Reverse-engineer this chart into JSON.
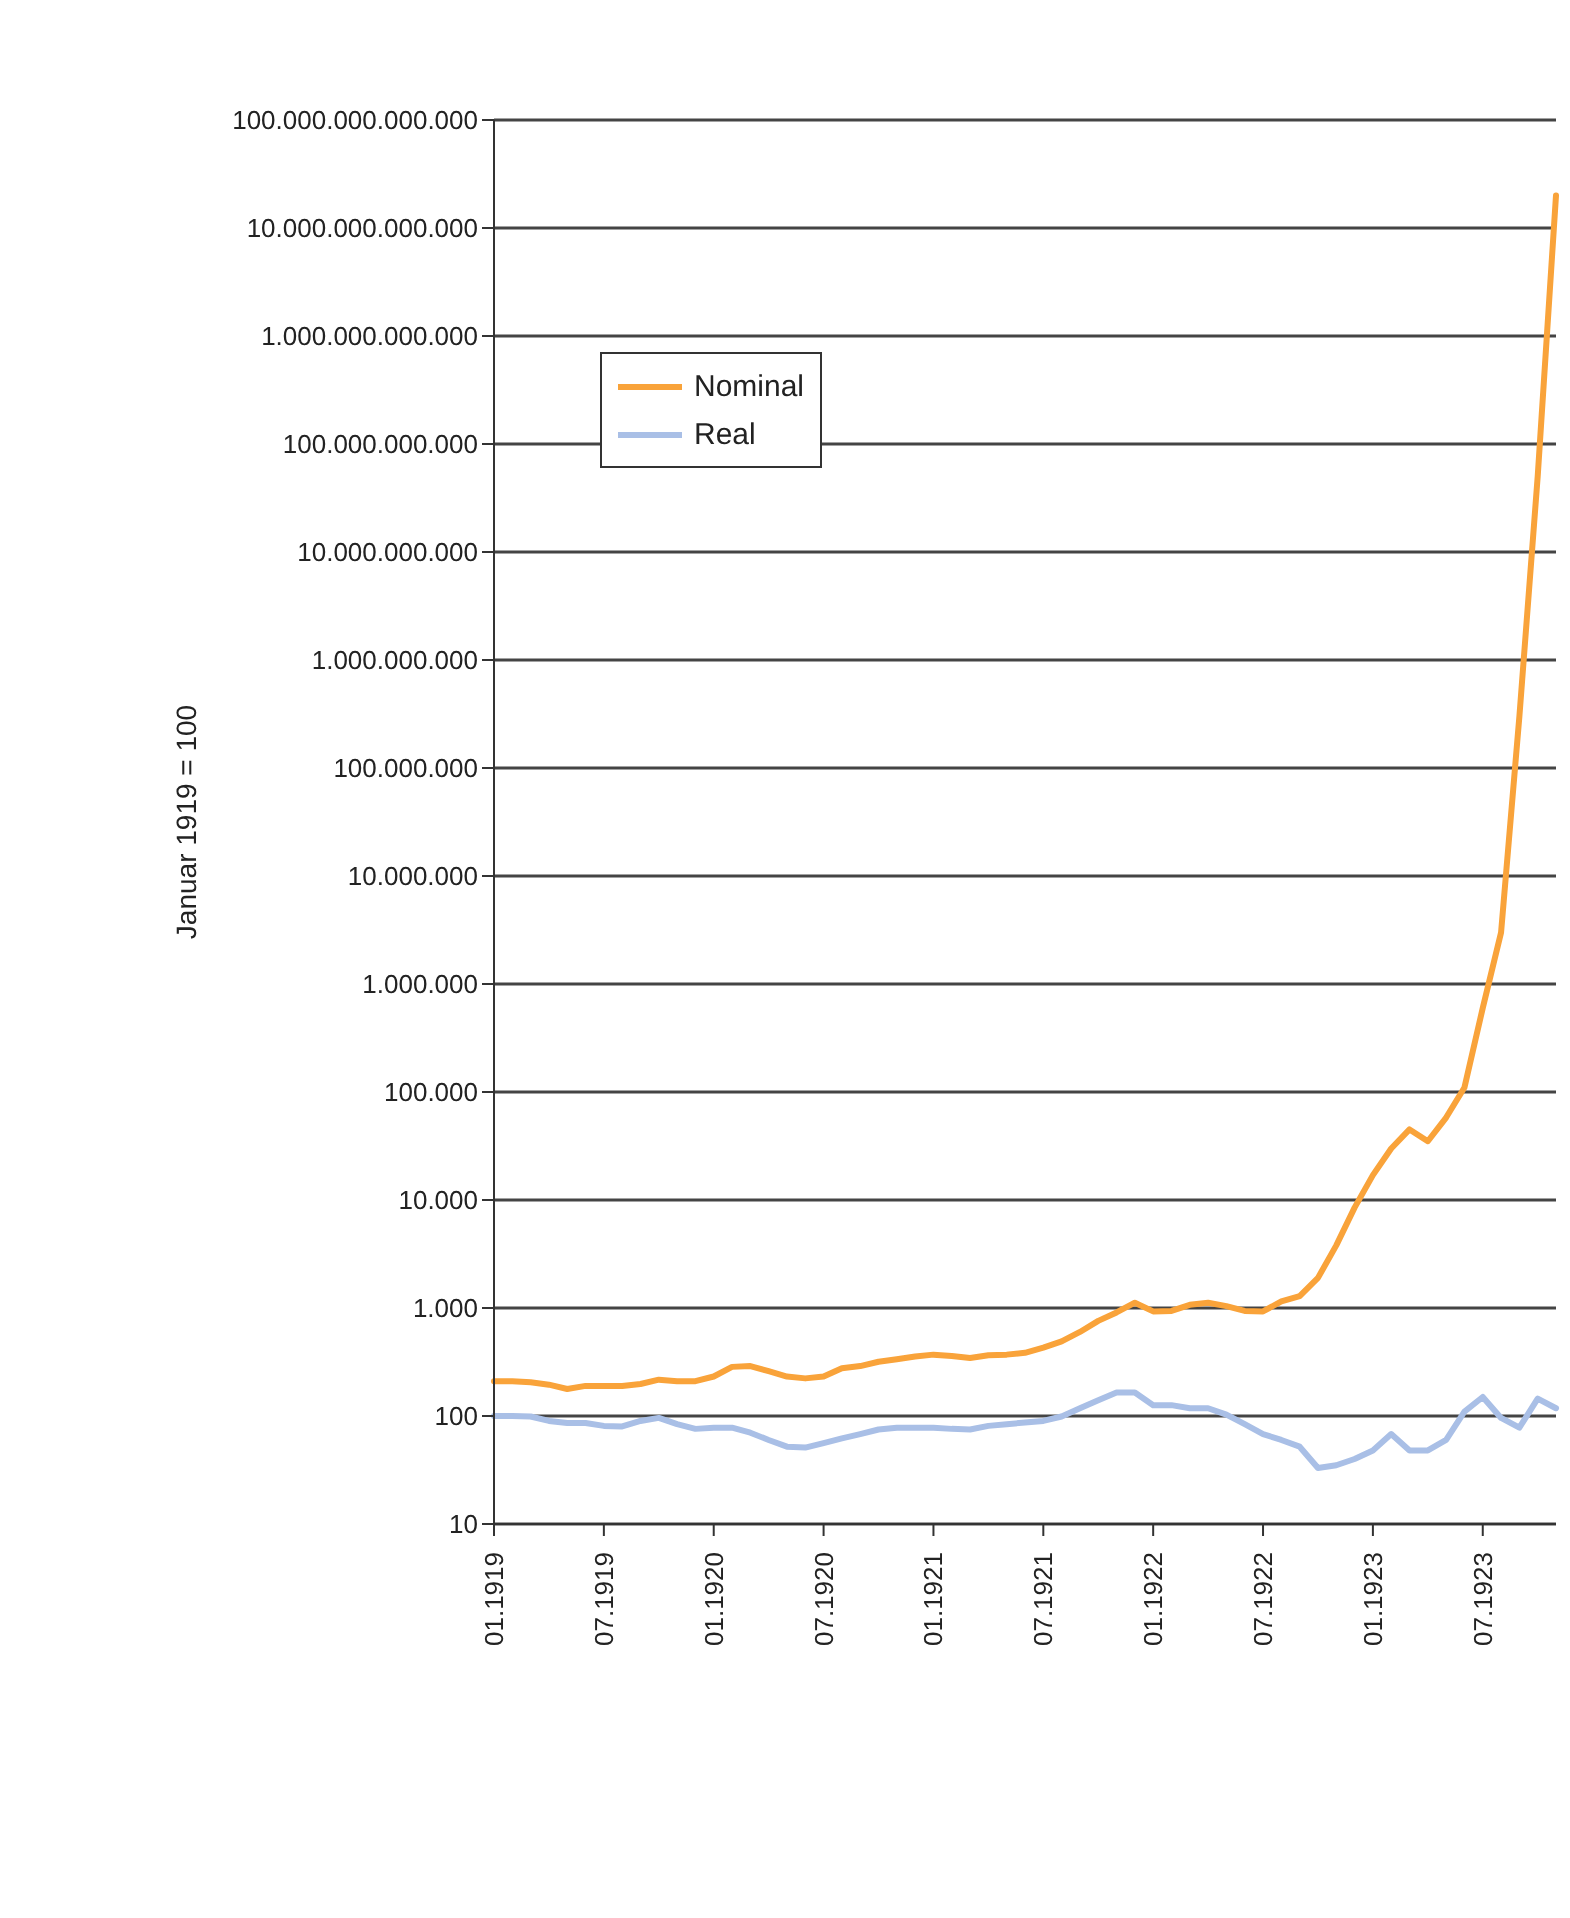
{
  "chart_data": {
    "type": "line",
    "ylabel": "Januar 1919 = 100",
    "categories": [
      "01.1919",
      null,
      null,
      null,
      null,
      null,
      "07.1919",
      null,
      null,
      null,
      null,
      null,
      "01.1920",
      null,
      null,
      null,
      null,
      null,
      "07.1920",
      null,
      null,
      null,
      null,
      null,
      "01.1921",
      null,
      null,
      null,
      null,
      null,
      "07.1921",
      null,
      null,
      null,
      null,
      null,
      "01.1922",
      null,
      null,
      null,
      null,
      null,
      "07.1922",
      null,
      null,
      null,
      null,
      null,
      "01.1923",
      null,
      null,
      null,
      null,
      null,
      "07.1923",
      null,
      null,
      null,
      null
    ],
    "series": [
      {
        "name": "Nominal",
        "color": "#f9a33a",
        "values": [
          210,
          210,
          205,
          195,
          178,
          190,
          190,
          190,
          198,
          217,
          210,
          210,
          232,
          285,
          290,
          260,
          232,
          223,
          232,
          277,
          290,
          318,
          336,
          355,
          370,
          360,
          345,
          365,
          370,
          385,
          430,
          490,
          600,
          760,
          910,
          1120,
          930,
          940,
          1070,
          1120,
          1040,
          940,
          930,
          1150,
          1290,
          1900,
          3800,
          8500,
          17000,
          30000,
          45000,
          35000,
          58000,
          110000,
          600000,
          3000000,
          300000000,
          50000000000,
          20000000000000
        ]
      },
      {
        "name": "Real",
        "color": "#a9bfe6",
        "values": [
          100,
          100,
          99,
          90,
          86,
          86,
          81,
          80,
          90,
          96,
          84,
          76,
          78,
          78,
          70,
          60,
          52,
          51,
          56,
          62,
          68,
          75,
          78,
          78,
          78,
          76,
          75,
          81,
          84,
          87,
          90,
          99,
          118,
          140,
          165,
          165,
          126,
          126,
          118,
          118,
          103,
          84,
          68,
          60,
          52,
          33,
          35,
          40,
          48,
          68,
          48,
          48,
          60,
          110,
          150,
          96,
          78,
          145,
          118
        ]
      }
    ],
    "log": "y",
    "ylim": [
      10,
      100000000000000
    ],
    "yticks": [
      {
        "value": 10,
        "label": "10"
      },
      {
        "value": 100,
        "label": "100"
      },
      {
        "value": 1000,
        "label": "1.000"
      },
      {
        "value": 10000,
        "label": "10.000"
      },
      {
        "value": 100000,
        "label": "100.000"
      },
      {
        "value": 1000000,
        "label": "1.000.000"
      },
      {
        "value": 10000000,
        "label": "10.000.000"
      },
      {
        "value": 100000000,
        "label": "100.000.000"
      },
      {
        "value": 1000000000,
        "label": "1.000.000.000"
      },
      {
        "value": 10000000000,
        "label": "10.000.000.000"
      },
      {
        "value": 100000000000,
        "label": "100.000.000.000"
      },
      {
        "value": 1000000000000,
        "label": "1.000.000.000.000"
      },
      {
        "value": 10000000000000,
        "label": "10.000.000.000.000"
      },
      {
        "value": 100000000000000,
        "label": "100.000.000.000.000"
      }
    ],
    "grid": "y",
    "legend": "top left",
    "marker": "none",
    "line_style": "solid"
  }
}
